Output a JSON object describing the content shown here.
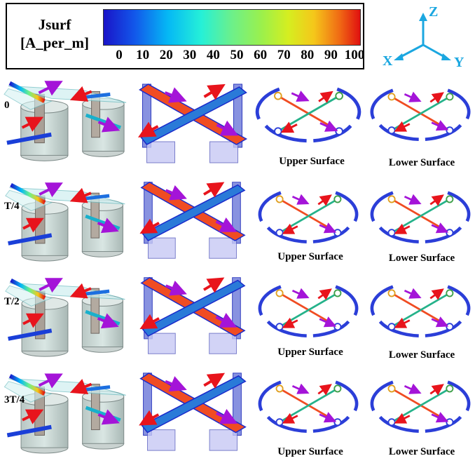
{
  "legend": {
    "title_line1": "Jsurf",
    "title_line2": "[A_per_m]",
    "ticks": [
      "0",
      "10",
      "20",
      "30",
      "40",
      "50",
      "60",
      "70",
      "80",
      "90",
      "100"
    ]
  },
  "axes": {
    "z": "Z",
    "x": "X",
    "y": "Y"
  },
  "rows": [
    {
      "time": "0",
      "upper": "Upper Surface",
      "lower": "Lower Surface"
    },
    {
      "time": "T/4",
      "upper": "Upper Surface",
      "lower": "Lower Surface"
    },
    {
      "time": "T/2",
      "upper": "Upper Surface",
      "lower": "Lower Surface"
    },
    {
      "time": "3T/4",
      "upper": "Upper Surface",
      "lower": "Lower Surface"
    }
  ],
  "colors": {
    "arrow_red": "#e8141c",
    "arrow_purple": "#a414d8",
    "axis": "#1ba7e0"
  }
}
